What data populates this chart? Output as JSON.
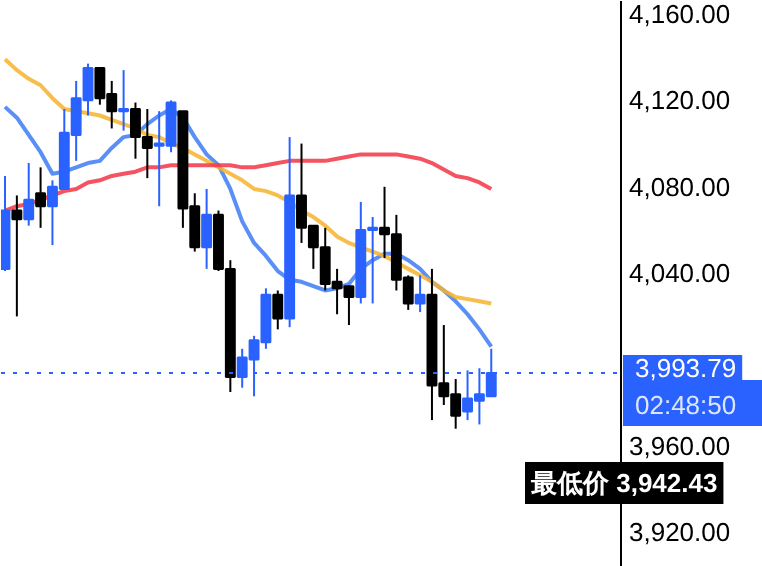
{
  "chart_data": {
    "type": "candlestick",
    "categories": [
      null,
      null,
      null,
      null,
      null,
      null,
      null,
      null,
      null,
      null,
      null,
      null,
      null,
      null,
      null,
      null,
      null,
      null,
      null,
      null,
      null,
      null,
      null,
      null,
      null,
      null,
      null,
      null,
      null,
      null,
      null,
      null,
      null,
      null,
      null,
      null,
      null,
      null,
      null,
      null,
      null,
      null
    ],
    "ohlc": [
      [
        4042,
        4085,
        4041,
        4069
      ],
      [
        4069,
        4076,
        4020,
        4065
      ],
      [
        4065,
        4091,
        4062,
        4074
      ],
      [
        4077,
        4089,
        4061,
        4071
      ],
      [
        4071,
        4083,
        4053,
        4080
      ],
      [
        4079,
        4116,
        4079,
        4105
      ],
      [
        4104,
        4129,
        4092,
        4121
      ],
      [
        4120,
        4137,
        4113,
        4135
      ],
      [
        4135,
        4135,
        4118,
        4121
      ],
      [
        4123,
        4129,
        4107,
        4115
      ],
      [
        4115,
        4134,
        4106,
        4116
      ],
      [
        4116,
        4119,
        4093,
        4103
      ],
      [
        4103,
        4116,
        4084,
        4098
      ],
      [
        4099,
        4115,
        4071,
        4100
      ],
      [
        4099,
        4120,
        4096,
        4119
      ],
      [
        4115,
        4115,
        4061,
        4070
      ],
      [
        4071,
        4077,
        4050,
        4052
      ],
      [
        4052,
        4079,
        4042,
        4067
      ],
      [
        4067,
        4069,
        4041,
        4042
      ],
      [
        4042,
        4046,
        3985,
        3992
      ],
      [
        3992,
        4005,
        3987,
        4001
      ],
      [
        4000,
        4011,
        3983,
        4009
      ],
      [
        4008,
        4033,
        4005,
        4030
      ],
      [
        4030,
        4032,
        4014,
        4019
      ],
      [
        4019,
        4103,
        4015,
        4076
      ],
      [
        4076,
        4100,
        4054,
        4061
      ],
      [
        4062,
        4062,
        4042,
        4052
      ],
      [
        4052,
        4061,
        4032,
        4035
      ],
      [
        4036,
        4042,
        4021,
        4033
      ],
      [
        4034,
        4034,
        4016,
        4029
      ],
      [
        4029,
        4073,
        4026,
        4060
      ],
      [
        4060,
        4066,
        4026,
        4061
      ],
      [
        4061,
        4080,
        4047,
        4058
      ],
      [
        4058,
        4067,
        4032,
        4037
      ],
      [
        4038,
        4039,
        4023,
        4026
      ],
      [
        4026,
        4039,
        4022,
        4030
      ],
      [
        4030,
        4042,
        3972,
        3988
      ],
      [
        3989,
        4016,
        3979,
        3983
      ],
      [
        3984,
        3991,
        3968,
        3974
      ],
      [
        3976,
        3995,
        3972,
        3982
      ],
      [
        3981,
        3996,
        3970,
        3984
      ],
      [
        3983,
        4005,
        3983,
        3993.79
      ]
    ],
    "colors": [
      "#2962ff",
      "#000000",
      "#2962ff",
      "#000000",
      "#2962ff",
      "#2962ff",
      "#2962ff",
      "#2962ff",
      "#000000",
      "#000000",
      "#2962ff",
      "#000000",
      "#000000",
      "#2962ff",
      "#2962ff",
      "#000000",
      "#000000",
      "#2962ff",
      "#000000",
      "#000000",
      "#2962ff",
      "#2962ff",
      "#2962ff",
      "#000000",
      "#2962ff",
      "#000000",
      "#000000",
      "#000000",
      "#000000",
      "#000000",
      "#2962ff",
      "#2962ff",
      "#000000",
      "#000000",
      "#000000",
      "#2962ff",
      "#000000",
      "#000000",
      "#000000",
      "#2962ff",
      "#2962ff",
      "#2962ff"
    ],
    "series": [
      {
        "type": "line",
        "color": "#3d7bf5",
        "values": [
          4117,
          4112,
          4104,
          4096,
          4086,
          4087,
          4089,
          4091,
          4092,
          4098,
          4103,
          4104,
          4109,
          4113,
          4116,
          4112,
          4103,
          4095,
          4090,
          4079,
          4064,
          4054,
          4048,
          4041,
          4037,
          4036,
          4034,
          4032,
          4033,
          4035,
          4042,
          4046,
          4049,
          4049,
          4046,
          4042,
          4036,
          4032,
          4027,
          4021,
          4014,
          4006
        ]
      },
      {
        "type": "line",
        "color": "#f7b32b",
        "values": [
          4139,
          4134,
          4130,
          4127,
          4121,
          4116,
          4115,
          4114,
          4113,
          4111,
          4109,
          4107,
          4104,
          4103,
          4100,
          4098,
          4095,
          4092,
          4089,
          4086,
          4083,
          4079,
          4078,
          4076,
          4073,
          4069,
          4066,
          4062,
          4057,
          4054,
          4052,
          4050,
          4048,
          4045,
          4042,
          4039,
          4036,
          4032,
          4029,
          4028,
          4027,
          4026
        ]
      },
      {
        "type": "line",
        "color": "#f23645",
        "values": [
          4069,
          4071,
          4072,
          4074,
          4076,
          4078,
          4079,
          4082,
          4083,
          4085,
          4086,
          4087,
          4089,
          4089,
          4090,
          4090,
          4090,
          4090,
          4090,
          4090,
          4089,
          4089,
          4090,
          4091,
          4092,
          4092,
          4092,
          4092,
          4093,
          4094,
          4095,
          4095,
          4095,
          4095,
          4094,
          4093,
          4091,
          4088,
          4085,
          4084,
          4082,
          4079
        ]
      }
    ],
    "ylim": [
      3904,
      4166
    ],
    "yticks": [
      {
        "value": 3920,
        "label": "3,920.00"
      },
      {
        "value": 3960,
        "label": "3,960.00"
      },
      {
        "value": 4040,
        "label": "4,040.00"
      },
      {
        "value": 4080,
        "label": "4,080.00"
      },
      {
        "value": 4120,
        "label": "4,120.00"
      },
      {
        "value": 4160,
        "label": "4,160.00"
      }
    ],
    "tick_labels": "y",
    "ref_lines": [
      {
        "axis": "y",
        "value": 3993.79,
        "label": "3,993.79",
        "color": "#2962ff",
        "line_style": "dotted"
      }
    ],
    "annotations": [
      "02:48:50",
      "最低价 3,942.43"
    ]
  }
}
